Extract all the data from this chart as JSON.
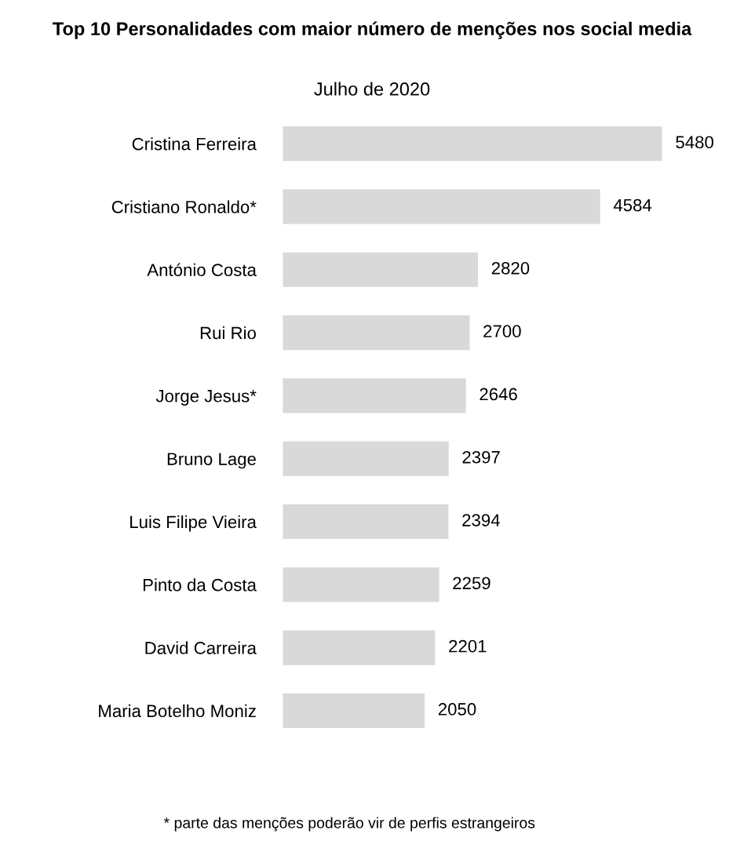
{
  "chart_data": {
    "type": "bar",
    "orientation": "horizontal",
    "title": "Top 10 Personalidades com maior número de menções nos social media",
    "subtitle": "Julho de 2020",
    "categories": [
      "Cristina Ferreira",
      "Cristiano Ronaldo*",
      "António Costa",
      "Rui Rio",
      "Jorge Jesus*",
      "Bruno Lage",
      "Luis Filipe Vieira",
      "Pinto da Costa",
      "David Carreira",
      "Maria Botelho Moniz"
    ],
    "values": [
      5480,
      4584,
      2820,
      2700,
      2646,
      2397,
      2394,
      2259,
      2201,
      2050
    ],
    "color": "#d9d9d9",
    "data_labels": true,
    "grid": false,
    "legend": false,
    "annotations": [
      "* parte das menções poderão vir de perfis estrangeiros"
    ]
  }
}
